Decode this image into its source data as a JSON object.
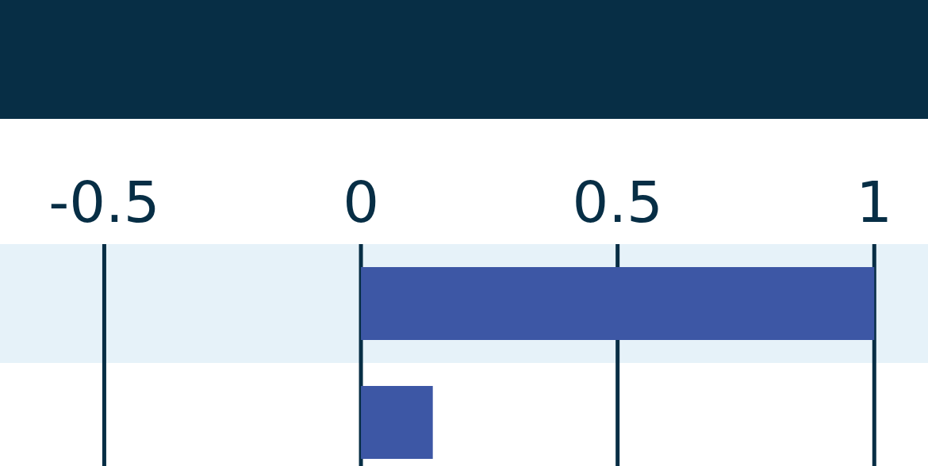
{
  "chart_data": {
    "type": "bar",
    "orientation": "horizontal",
    "categories": [
      null,
      null
    ],
    "values": [
      1,
      0.14
    ],
    "color": "#3d57a5",
    "xlim": [
      -0.7,
      1.1
    ],
    "xticks": [
      -0.5,
      0,
      0.5,
      1
    ],
    "grid": "x"
  }
}
